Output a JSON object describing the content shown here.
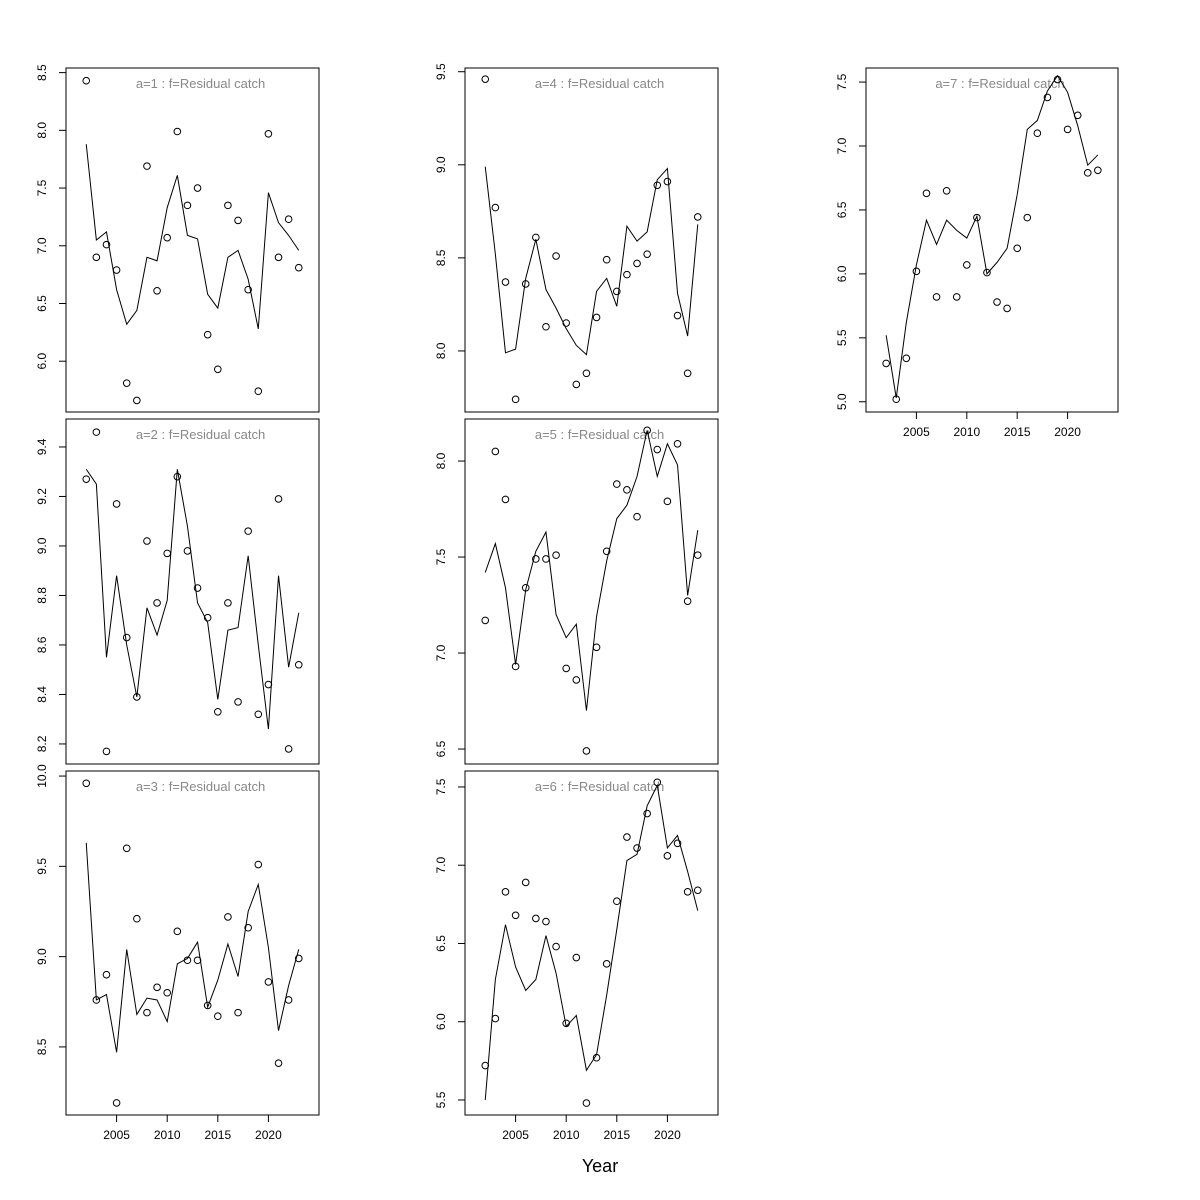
{
  "xlabel": "Year",
  "chart_data": [
    {
      "type": "line",
      "title": "a=1  :  f=Residual catch",
      "x": [
        2002,
        2003,
        2004,
        2005,
        2006,
        2007,
        2008,
        2009,
        2010,
        2011,
        2012,
        2013,
        2014,
        2015,
        2016,
        2017,
        2018,
        2019,
        2020,
        2021,
        2022,
        2023
      ],
      "xlim": [
        2000,
        2025
      ],
      "ylim": [
        5.56,
        8.54
      ],
      "yticks": [
        {
          "value": 6,
          "label": "6.0"
        },
        6.5,
        {
          "value": 7,
          "label": "7.0"
        },
        7.5,
        {
          "value": 8,
          "label": "8.0"
        },
        8.5
      ],
      "series": [
        {
          "mark": "points",
          "color": "#000000",
          "values": [
            8.43,
            6.9,
            7.01,
            6.79,
            5.81,
            5.66,
            7.69,
            6.61,
            7.07,
            7.99,
            7.35,
            7.5,
            6.23,
            5.93,
            7.35,
            7.22,
            6.62,
            5.74,
            7.97,
            6.9,
            7.23,
            6.81
          ]
        },
        {
          "mark": "line",
          "color": "#000000",
          "values": [
            7.88,
            7.05,
            7.12,
            6.62,
            6.32,
            6.44,
            6.9,
            6.87,
            7.33,
            7.61,
            7.09,
            7.06,
            6.58,
            6.46,
            6.9,
            6.96,
            6.71,
            6.28,
            7.46,
            7.2,
            7.09,
            6.96
          ]
        }
      ]
    },
    {
      "type": "line",
      "title": "a=2  :  f=Residual catch",
      "x": [
        2002,
        2003,
        2004,
        2005,
        2006,
        2007,
        2008,
        2009,
        2010,
        2011,
        2012,
        2013,
        2014,
        2015,
        2016,
        2017,
        2018,
        2019,
        2020,
        2021,
        2022,
        2023
      ],
      "xlim": [
        2000,
        2025
      ],
      "ylim": [
        8.119,
        9.513
      ],
      "yticks": [
        8.2,
        8.4,
        8.6,
        8.8,
        {
          "value": 9,
          "label": "9.0"
        },
        9.2,
        9.4
      ],
      "series": [
        {
          "mark": "points",
          "color": "#000000",
          "values": [
            9.27,
            9.46,
            8.17,
            9.17,
            8.63,
            8.39,
            9.02,
            8.77,
            8.97,
            9.28,
            8.98,
            8.83,
            8.71,
            8.33,
            8.77,
            8.37,
            9.06,
            8.32,
            8.44,
            9.19,
            8.18,
            8.52
          ]
        },
        {
          "mark": "line",
          "color": "#000000",
          "values": [
            9.31,
            9.25,
            8.55,
            8.88,
            8.6,
            8.39,
            8.75,
            8.64,
            8.78,
            9.31,
            9.08,
            8.77,
            8.69,
            8.38,
            8.66,
            8.67,
            8.96,
            8.6,
            8.26,
            8.88,
            8.51,
            8.73
          ]
        }
      ]
    },
    {
      "type": "line",
      "title": "a=3  :  f=Residual catch",
      "x": [
        2002,
        2003,
        2004,
        2005,
        2006,
        2007,
        2008,
        2009,
        2010,
        2011,
        2012,
        2013,
        2014,
        2015,
        2016,
        2017,
        2018,
        2019,
        2020,
        2021,
        2022,
        2023
      ],
      "xlim": [
        2000,
        2025
      ],
      "ylim": [
        8.123,
        10.028
      ],
      "xticks": [
        2005,
        2010,
        2015,
        2020
      ],
      "yticks": [
        8.5,
        {
          "value": 9,
          "label": "9.0"
        },
        9.5,
        {
          "value": 10,
          "label": "10.0"
        }
      ],
      "series": [
        {
          "mark": "points",
          "color": "#000000",
          "values": [
            9.96,
            8.76,
            8.9,
            8.19,
            9.6,
            9.21,
            8.69,
            8.83,
            8.8,
            9.14,
            8.98,
            8.98,
            8.73,
            8.67,
            9.22,
            8.69,
            9.16,
            9.51,
            8.86,
            8.41,
            8.76,
            8.99
          ]
        },
        {
          "mark": "line",
          "color": "#000000",
          "values": [
            9.63,
            8.76,
            8.79,
            8.47,
            9.04,
            8.68,
            8.77,
            8.76,
            8.64,
            8.96,
            8.99,
            9.08,
            8.72,
            8.87,
            9.07,
            8.89,
            9.25,
            9.4,
            9.05,
            8.59,
            8.84,
            9.04
          ]
        }
      ]
    },
    {
      "type": "line",
      "title": "a=4  :  f=Residual catch",
      "x": [
        2002,
        2003,
        2004,
        2005,
        2006,
        2007,
        2008,
        2009,
        2010,
        2011,
        2012,
        2013,
        2014,
        2015,
        2016,
        2017,
        2018,
        2019,
        2020,
        2021,
        2022,
        2023
      ],
      "xlim": [
        2000,
        2025
      ],
      "ylim": [
        7.672,
        9.52
      ],
      "yticks": [
        {
          "value": 8,
          "label": "8.0"
        },
        8.5,
        {
          "value": 9,
          "label": "9.0"
        },
        9.5
      ],
      "series": [
        {
          "mark": "points",
          "color": "#000000",
          "values": [
            9.46,
            8.77,
            8.37,
            7.74,
            8.36,
            8.61,
            8.13,
            8.51,
            8.15,
            7.82,
            7.88,
            8.18,
            8.49,
            8.32,
            8.41,
            8.47,
            8.52,
            8.89,
            8.91,
            8.19,
            7.88,
            8.72
          ]
        },
        {
          "mark": "line",
          "color": "#000000",
          "values": [
            8.99,
            8.52,
            7.99,
            8.01,
            8.39,
            8.6,
            8.33,
            8.23,
            8.12,
            8.03,
            7.98,
            8.32,
            8.39,
            8.24,
            8.67,
            8.59,
            8.64,
            8.92,
            8.98,
            8.31,
            8.08,
            8.68
          ]
        }
      ]
    },
    {
      "type": "line",
      "title": "a=5  :  f=Residual catch",
      "x": [
        2002,
        2003,
        2004,
        2005,
        2006,
        2007,
        2008,
        2009,
        2010,
        2011,
        2012,
        2013,
        2014,
        2015,
        2016,
        2017,
        2018,
        2019,
        2020,
        2021,
        2022,
        2023
      ],
      "xlim": [
        2000,
        2025
      ],
      "ylim": [
        6.422,
        8.219
      ],
      "yticks": [
        6.5,
        {
          "value": 7,
          "label": "7.0"
        },
        7.5,
        {
          "value": 8,
          "label": "8.0"
        }
      ],
      "series": [
        {
          "mark": "points",
          "color": "#000000",
          "values": [
            7.17,
            8.05,
            7.8,
            6.93,
            7.34,
            7.49,
            7.49,
            7.51,
            6.92,
            6.86,
            6.49,
            7.03,
            7.53,
            7.88,
            7.85,
            7.71,
            8.16,
            8.06,
            7.79,
            8.09,
            7.27,
            7.51
          ]
        },
        {
          "mark": "line",
          "color": "#000000",
          "values": [
            7.42,
            7.57,
            7.34,
            6.94,
            7.33,
            7.53,
            7.63,
            7.2,
            7.08,
            7.15,
            6.7,
            7.19,
            7.48,
            7.7,
            7.77,
            7.92,
            8.16,
            7.92,
            8.09,
            7.98,
            7.3,
            7.64
          ]
        }
      ]
    },
    {
      "type": "line",
      "title": "a=6  :  f=Residual catch",
      "x": [
        2002,
        2003,
        2004,
        2005,
        2006,
        2007,
        2008,
        2009,
        2010,
        2011,
        2012,
        2013,
        2014,
        2015,
        2016,
        2017,
        2018,
        2019,
        2020,
        2021,
        2022,
        2023
      ],
      "xlim": [
        2000,
        2025
      ],
      "ylim": [
        5.404,
        7.602
      ],
      "xticks": [
        2005,
        2010,
        2015,
        2020
      ],
      "yticks": [
        5.5,
        {
          "value": 6,
          "label": "6.0"
        },
        6.5,
        {
          "value": 7,
          "label": "7.0"
        },
        7.5
      ],
      "series": [
        {
          "mark": "points",
          "color": "#000000",
          "values": [
            5.72,
            6.02,
            6.83,
            6.68,
            6.89,
            6.66,
            6.64,
            6.48,
            5.99,
            6.41,
            5.48,
            5.77,
            6.37,
            6.77,
            7.18,
            7.11,
            7.33,
            7.53,
            7.06,
            7.14,
            6.83,
            6.84
          ]
        },
        {
          "mark": "line",
          "color": "#000000",
          "values": [
            5.5,
            6.27,
            6.62,
            6.35,
            6.2,
            6.27,
            6.55,
            6.31,
            5.97,
            6.04,
            5.69,
            5.79,
            6.17,
            6.59,
            7.03,
            7.07,
            7.38,
            7.51,
            7.11,
            7.19,
            6.96,
            6.71
          ]
        }
      ]
    },
    {
      "type": "line",
      "title": "a=7  :  f=Residual catch",
      "x": [
        2002,
        2003,
        2004,
        2005,
        2006,
        2007,
        2008,
        2009,
        2010,
        2011,
        2012,
        2013,
        2014,
        2015,
        2016,
        2017,
        2018,
        2019,
        2020,
        2021,
        2022,
        2023
      ],
      "xlim": [
        2000,
        2025
      ],
      "ylim": [
        4.92,
        7.61
      ],
      "xticks": [
        2005,
        2010,
        2015,
        2020
      ],
      "yticks": [
        {
          "value": 5,
          "label": "5.0"
        },
        5.5,
        {
          "value": 6,
          "label": "6.0"
        },
        6.5,
        {
          "value": 7,
          "label": "7.0"
        },
        7.5
      ],
      "series": [
        {
          "mark": "points",
          "color": "#000000",
          "values": [
            5.3,
            5.02,
            5.34,
            6.02,
            6.63,
            5.82,
            6.65,
            5.82,
            6.07,
            6.44,
            6.01,
            5.78,
            5.73,
            6.2,
            6.44,
            7.1,
            7.38,
            7.52,
            7.13,
            7.24,
            6.79,
            6.81
          ]
        },
        {
          "mark": "line",
          "color": "#000000",
          "values": [
            5.52,
            5.03,
            5.62,
            6.07,
            6.42,
            6.23,
            6.42,
            6.34,
            6.28,
            6.45,
            6.0,
            6.09,
            6.2,
            6.62,
            7.13,
            7.2,
            7.43,
            7.55,
            7.42,
            7.16,
            6.85,
            6.93
          ]
        }
      ]
    }
  ]
}
